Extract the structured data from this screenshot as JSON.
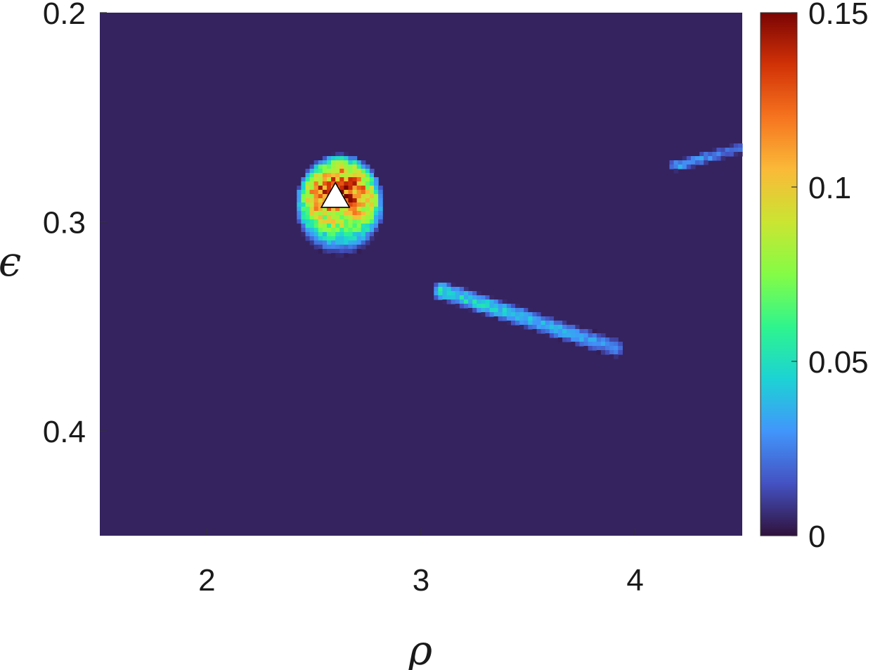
{
  "chart_data": {
    "type": "heatmap",
    "title": "",
    "xlabel": "ρ",
    "ylabel": "ϵ",
    "xlim": [
      1.5,
      4.5
    ],
    "ylim": [
      0.2,
      0.45
    ],
    "y_reversed": true,
    "x_ticks": [
      {
        "value": 2,
        "label": "2"
      },
      {
        "value": 3,
        "label": "3"
      },
      {
        "value": 4,
        "label": "4"
      }
    ],
    "y_ticks": [
      {
        "value": 0.2,
        "label": "0.2"
      },
      {
        "value": 0.3,
        "label": "0.3"
      },
      {
        "value": 0.4,
        "label": "0.4"
      }
    ],
    "colorbar": {
      "min": 0,
      "max": 0.15,
      "colormap": "turbo",
      "ticks": [
        {
          "value": 0,
          "label": "0"
        },
        {
          "value": 0.05,
          "label": "0.05"
        },
        {
          "value": 0.1,
          "label": "0.1"
        },
        {
          "value": 0.15,
          "label": "0.15"
        }
      ]
    },
    "background_value": 0.004,
    "regions": [
      {
        "name": "blob",
        "shape": "ellipse",
        "center": [
          2.62,
          0.292
        ],
        "radius": [
          0.21,
          0.025
        ],
        "peak": 0.125
      },
      {
        "name": "streak",
        "shape": "segment",
        "from": [
          3.1,
          0.333
        ],
        "to": [
          3.9,
          0.36
        ],
        "width": 0.005,
        "peak": 0.05
      },
      {
        "name": "edge-streak",
        "shape": "segment",
        "from": [
          4.2,
          0.273
        ],
        "to": [
          4.48,
          0.265
        ],
        "width": 0.003,
        "peak": 0.035
      }
    ],
    "marker": {
      "shape": "triangle",
      "x": 2.6,
      "y": 0.288,
      "color": "#ffffff"
    }
  }
}
